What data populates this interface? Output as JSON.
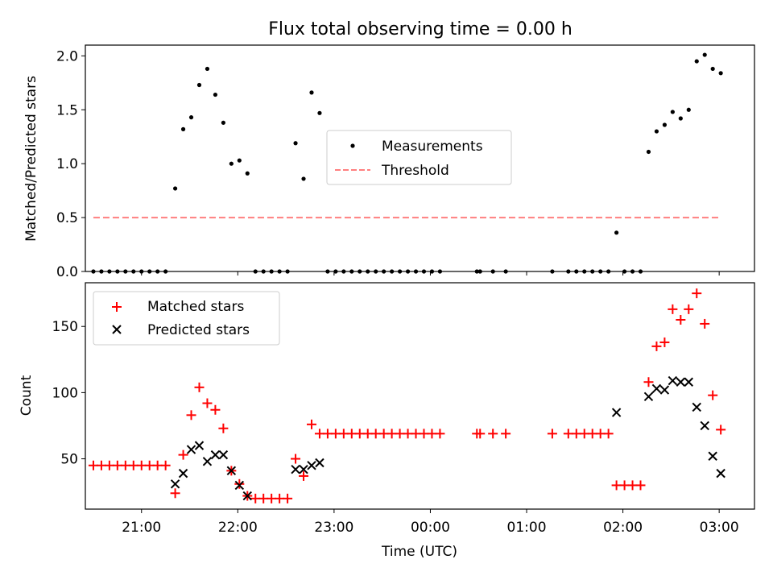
{
  "chart_data": [
    {
      "type": "scatter",
      "title": "Flux total observing time = 0.00 h",
      "xlabel": "",
      "ylabel": "Matched/Predicted stars",
      "ylim": [
        0,
        2.1
      ],
      "yticks": [
        "0.0",
        "0.5",
        "1.0",
        "1.5",
        "2.0"
      ],
      "xlim": [
        "20:25",
        "03:22"
      ],
      "x_tick_labels_shown": false,
      "legend": "center",
      "series": [
        {
          "name": "Measurements",
          "marker": "dot",
          "color": "#000000",
          "points": [
            [
              "20:30",
              0
            ],
            [
              "20:35",
              0
            ],
            [
              "20:40",
              0
            ],
            [
              "20:45",
              0
            ],
            [
              "20:50",
              0
            ],
            [
              "20:55",
              0
            ],
            [
              "21:00",
              0
            ],
            [
              "21:05",
              0
            ],
            [
              "21:10",
              0
            ],
            [
              "21:15",
              0
            ],
            [
              "21:21",
              0.77
            ],
            [
              "21:26",
              1.32
            ],
            [
              "21:31",
              1.43
            ],
            [
              "21:36",
              1.73
            ],
            [
              "21:41",
              1.88
            ],
            [
              "21:46",
              1.64
            ],
            [
              "21:51",
              1.38
            ],
            [
              "21:56",
              1.0
            ],
            [
              "22:01",
              1.03
            ],
            [
              "22:06",
              0.91
            ],
            [
              "22:11",
              0
            ],
            [
              "22:16",
              0
            ],
            [
              "22:21",
              0
            ],
            [
              "22:26",
              0
            ],
            [
              "22:31",
              0
            ],
            [
              "22:36",
              1.19
            ],
            [
              "22:41",
              0.86
            ],
            [
              "22:46",
              1.66
            ],
            [
              "22:51",
              1.47
            ],
            [
              "22:56",
              0
            ],
            [
              "23:01",
              0
            ],
            [
              "23:06",
              0
            ],
            [
              "23:11",
              0
            ],
            [
              "23:16",
              0
            ],
            [
              "23:21",
              0
            ],
            [
              "23:26",
              0
            ],
            [
              "23:31",
              0
            ],
            [
              "23:36",
              0
            ],
            [
              "23:41",
              0
            ],
            [
              "23:46",
              0
            ],
            [
              "23:51",
              0
            ],
            [
              "23:56",
              0
            ],
            [
              "00:01",
              0
            ],
            [
              "00:06",
              0
            ],
            [
              "00:29",
              0
            ],
            [
              "00:31",
              0
            ],
            [
              "00:39",
              0
            ],
            [
              "00:47",
              0
            ],
            [
              "01:16",
              0
            ],
            [
              "01:26",
              0
            ],
            [
              "01:31",
              0
            ],
            [
              "01:36",
              0
            ],
            [
              "01:41",
              0
            ],
            [
              "01:46",
              0
            ],
            [
              "01:51",
              0
            ],
            [
              "01:56",
              0.36
            ],
            [
              "02:01",
              0
            ],
            [
              "02:06",
              0
            ],
            [
              "02:11",
              0
            ],
            [
              "02:16",
              1.11
            ],
            [
              "02:21",
              1.3
            ],
            [
              "02:26",
              1.36
            ],
            [
              "02:31",
              1.48
            ],
            [
              "02:36",
              1.42
            ],
            [
              "02:41",
              1.5
            ],
            [
              "02:46",
              1.95
            ],
            [
              "02:51",
              2.01
            ],
            [
              "02:56",
              1.88
            ],
            [
              "03:01",
              1.84
            ]
          ]
        },
        {
          "name": "Threshold",
          "style": "dashed-line",
          "color": "#ff7f7f",
          "points": [
            [
              "20:30",
              0.5
            ],
            [
              "03:01",
              0.5
            ]
          ]
        }
      ]
    },
    {
      "type": "scatter",
      "title": "",
      "xlabel": "Time (UTC)",
      "ylabel": "Count",
      "ylim": [
        12,
        183
      ],
      "yticks": [
        "50",
        "100",
        "150"
      ],
      "xlim": [
        "20:25",
        "03:22"
      ],
      "x_tick_labels": [
        "21:00",
        "22:00",
        "23:00",
        "00:00",
        "01:00",
        "02:00",
        "03:00"
      ],
      "legend": "upper left",
      "series": [
        {
          "name": "Matched stars",
          "marker": "plus",
          "color": "#ff0000",
          "points": [
            [
              "20:30",
              45
            ],
            [
              "20:35",
              45
            ],
            [
              "20:40",
              45
            ],
            [
              "20:45",
              45
            ],
            [
              "20:50",
              45
            ],
            [
              "20:55",
              45
            ],
            [
              "21:00",
              45
            ],
            [
              "21:05",
              45
            ],
            [
              "21:10",
              45
            ],
            [
              "21:15",
              45
            ],
            [
              "21:21",
              24
            ],
            [
              "21:26",
              53
            ],
            [
              "21:31",
              83
            ],
            [
              "21:36",
              104
            ],
            [
              "21:41",
              92
            ],
            [
              "21:46",
              87
            ],
            [
              "21:51",
              73
            ],
            [
              "21:56",
              41
            ],
            [
              "22:01",
              31
            ],
            [
              "22:06",
              22
            ],
            [
              "22:11",
              20
            ],
            [
              "22:16",
              20
            ],
            [
              "22:21",
              20
            ],
            [
              "22:26",
              20
            ],
            [
              "22:31",
              20
            ],
            [
              "22:36",
              50
            ],
            [
              "22:41",
              37
            ],
            [
              "22:46",
              76
            ],
            [
              "22:51",
              69
            ],
            [
              "22:56",
              69
            ],
            [
              "23:01",
              69
            ],
            [
              "23:06",
              69
            ],
            [
              "23:11",
              69
            ],
            [
              "23:16",
              69
            ],
            [
              "23:21",
              69
            ],
            [
              "23:26",
              69
            ],
            [
              "23:31",
              69
            ],
            [
              "23:36",
              69
            ],
            [
              "23:41",
              69
            ],
            [
              "23:46",
              69
            ],
            [
              "23:51",
              69
            ],
            [
              "23:56",
              69
            ],
            [
              "00:01",
              69
            ],
            [
              "00:06",
              69
            ],
            [
              "00:29",
              69
            ],
            [
              "00:31",
              69
            ],
            [
              "00:39",
              69
            ],
            [
              "00:47",
              69
            ],
            [
              "01:16",
              69
            ],
            [
              "01:26",
              69
            ],
            [
              "01:31",
              69
            ],
            [
              "01:36",
              69
            ],
            [
              "01:41",
              69
            ],
            [
              "01:46",
              69
            ],
            [
              "01:51",
              69
            ],
            [
              "01:56",
              30
            ],
            [
              "02:01",
              30
            ],
            [
              "02:06",
              30
            ],
            [
              "02:11",
              30
            ],
            [
              "02:16",
              108
            ],
            [
              "02:21",
              135
            ],
            [
              "02:26",
              138
            ],
            [
              "02:31",
              163
            ],
            [
              "02:36",
              155
            ],
            [
              "02:41",
              163
            ],
            [
              "02:46",
              175
            ],
            [
              "02:51",
              152
            ],
            [
              "02:56",
              98
            ],
            [
              "03:01",
              72
            ]
          ]
        },
        {
          "name": "Predicted stars",
          "marker": "x",
          "color": "#000000",
          "points": [
            [
              "21:21",
              31
            ],
            [
              "21:26",
              39
            ],
            [
              "21:31",
              57
            ],
            [
              "21:36",
              60
            ],
            [
              "21:41",
              48
            ],
            [
              "21:46",
              53
            ],
            [
              "21:51",
              53
            ],
            [
              "21:56",
              41
            ],
            [
              "22:01",
              30
            ],
            [
              "22:06",
              22
            ],
            [
              "22:36",
              42
            ],
            [
              "22:41",
              42
            ],
            [
              "22:46",
              45
            ],
            [
              "22:51",
              47
            ],
            [
              "01:56",
              85
            ],
            [
              "02:16",
              97
            ],
            [
              "02:21",
              103
            ],
            [
              "02:26",
              102
            ],
            [
              "02:31",
              109
            ],
            [
              "02:36",
              108
            ],
            [
              "02:41",
              108
            ],
            [
              "02:46",
              89
            ],
            [
              "02:51",
              75
            ],
            [
              "02:56",
              52
            ],
            [
              "03:01",
              39
            ]
          ]
        }
      ]
    }
  ]
}
